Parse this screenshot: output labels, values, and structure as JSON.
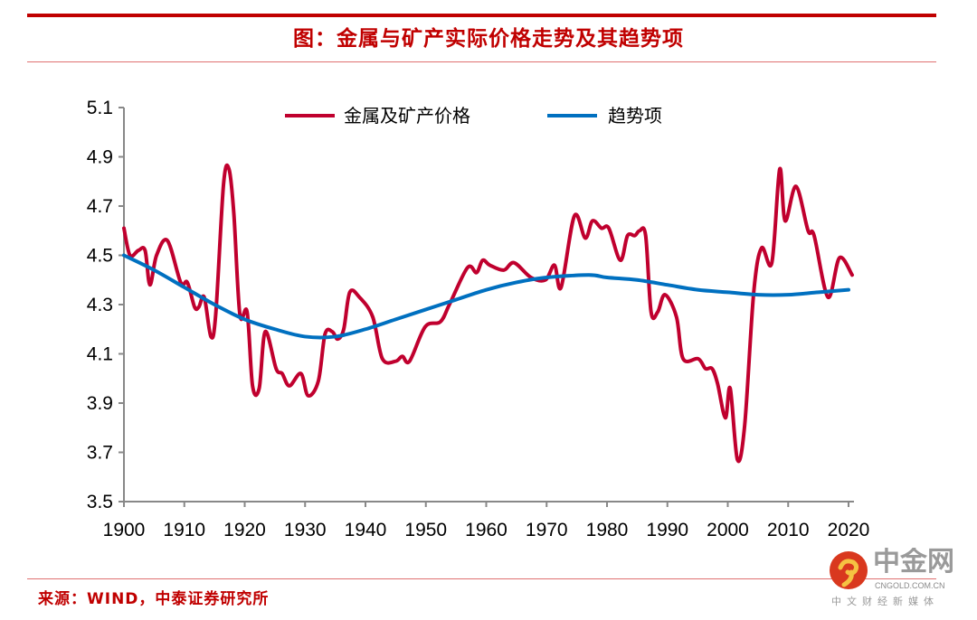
{
  "header": {
    "title": "图：金属与矿产实际价格走势及其趋势项"
  },
  "footer": {
    "source": "来源：WIND，中泰证券研究所"
  },
  "watermark": {
    "name": "中金网",
    "domain": "CNGOLD.COM.CN",
    "tagline": "中文财经新媒体"
  },
  "colors": {
    "price": "#c0002e",
    "trend": "#0070c0",
    "title": "#c00000"
  },
  "chart_data": {
    "type": "line",
    "title": "金属与矿产实际价格走势及其趋势项",
    "xlabel": "",
    "ylabel": "",
    "xlim": [
      1900,
      2021
    ],
    "ylim": [
      3.5,
      5.1
    ],
    "xticks": [
      1900,
      1910,
      1920,
      1930,
      1940,
      1950,
      1960,
      1970,
      1980,
      1990,
      2000,
      2010,
      2020
    ],
    "xtick_labels": [
      "1900",
      "1910",
      "1920",
      "1930",
      "1940",
      "1950",
      "1960",
      "1970",
      "1980",
      "1990",
      "2000",
      "2010",
      "2020"
    ],
    "yticks": [
      3.5,
      3.7,
      3.9,
      4.1,
      4.3,
      4.5,
      4.7,
      4.9,
      5.1
    ],
    "ytick_labels": [
      "3.5",
      "3.7",
      "3.9",
      "4.1",
      "4.3",
      "4.5",
      "4.7",
      "4.9",
      "5.1"
    ],
    "legend_position": "top-center",
    "grid": false,
    "series": [
      {
        "name": "金属及矿产价格",
        "color": "#c0002e",
        "x": [
          1900,
          1901,
          1902.4,
          1903.5,
          1904.3,
          1905.4,
          1907.2,
          1909.4,
          1910.5,
          1911.7,
          1912.4,
          1913.3,
          1914.4,
          1915.2,
          1916.5,
          1917.4,
          1918.2,
          1919.2,
          1920.4,
          1921.3,
          1922.4,
          1923.4,
          1925.2,
          1926.2,
          1927.4,
          1929.3,
          1930.5,
          1932.2,
          1933.3,
          1934.5,
          1935.4,
          1936.4,
          1937.4,
          1939,
          1941.2,
          1942.8,
          1945,
          1946.1,
          1947.3,
          1949.9,
          1952.4,
          1953.9,
          1956.9,
          1958.4,
          1959.4,
          1960.6,
          1962.9,
          1964.6,
          1967.4,
          1969.8,
          1971.3,
          1972.4,
          1974.6,
          1976.4,
          1977.6,
          1979.1,
          1980.3,
          1982.2,
          1983.4,
          1984.6,
          1985.4,
          1986.4,
          1987.3,
          1988.4,
          1989.6,
          1991.5,
          1992.6,
          1995.1,
          1996.3,
          1997.4,
          1998.3,
          1999.6,
          2000.4,
          2001.6,
          2002.8,
          2004.3,
          2005.6,
          2007.3,
          2008.6,
          2009.5,
          2011.3,
          2013.3,
          2014.3,
          2016.6,
          2018.5,
          2020.6
        ],
        "values": [
          4.61,
          4.5,
          4.52,
          4.52,
          4.38,
          4.5,
          4.56,
          4.39,
          4.39,
          4.29,
          4.29,
          4.33,
          4.17,
          4.26,
          4.79,
          4.85,
          4.67,
          4.26,
          4.27,
          3.97,
          3.96,
          4.19,
          4.04,
          4.02,
          3.97,
          4.02,
          3.93,
          3.99,
          4.18,
          4.19,
          4.16,
          4.2,
          4.35,
          4.33,
          4.25,
          4.08,
          4.07,
          4.09,
          4.07,
          4.21,
          4.23,
          4.3,
          4.45,
          4.43,
          4.48,
          4.46,
          4.44,
          4.47,
          4.41,
          4.4,
          4.46,
          4.37,
          4.66,
          4.57,
          4.64,
          4.61,
          4.61,
          4.48,
          4.58,
          4.58,
          4.6,
          4.58,
          4.27,
          4.27,
          4.34,
          4.25,
          4.08,
          4.08,
          4.04,
          4.04,
          3.98,
          3.84,
          3.96,
          3.67,
          3.81,
          4.35,
          4.53,
          4.47,
          4.85,
          4.64,
          4.78,
          4.6,
          4.58,
          4.33,
          4.49,
          4.42
        ]
      },
      {
        "name": "趋势项",
        "color": "#0070c0",
        "x": [
          1900,
          1905,
          1910,
          1915,
          1920,
          1925,
          1930,
          1935,
          1940,
          1945,
          1950,
          1955,
          1960,
          1965,
          1970,
          1977,
          1980,
          1985,
          1990,
          1995,
          2000,
          2005,
          2010,
          2015,
          2020
        ],
        "values": [
          4.5,
          4.44,
          4.37,
          4.3,
          4.24,
          4.2,
          4.17,
          4.17,
          4.2,
          4.24,
          4.28,
          4.32,
          4.36,
          4.39,
          4.41,
          4.42,
          4.41,
          4.4,
          4.38,
          4.36,
          4.35,
          4.34,
          4.34,
          4.35,
          4.36
        ]
      }
    ]
  }
}
